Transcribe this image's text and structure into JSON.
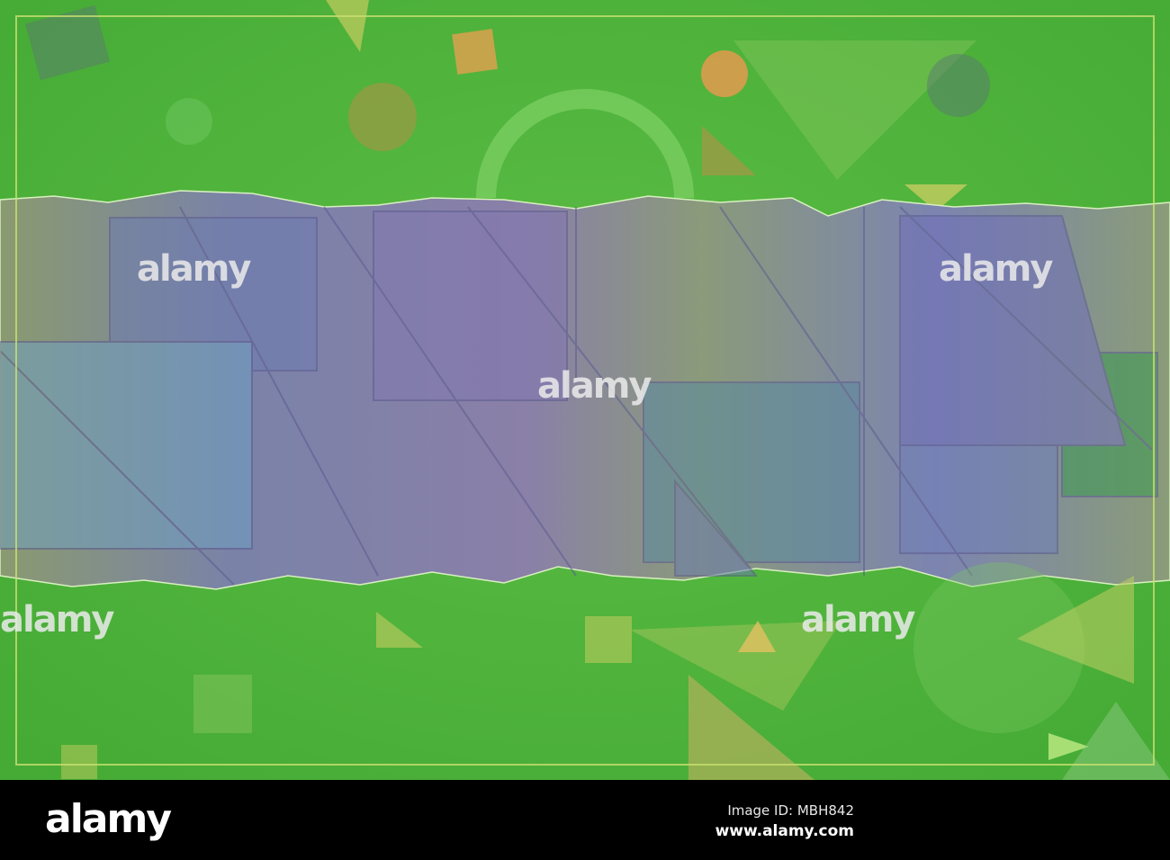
{
  "image": {
    "description_colors": {
      "background": "#4fb33c",
      "strip": "#7a7fa0",
      "frame": "#c8e070",
      "accent_orange": "#e39a4e"
    },
    "watermark_text": "alamy"
  },
  "footer": {
    "logo": "alamy",
    "image_id": "Image ID: MBH842",
    "website": "www.alamy.com"
  }
}
